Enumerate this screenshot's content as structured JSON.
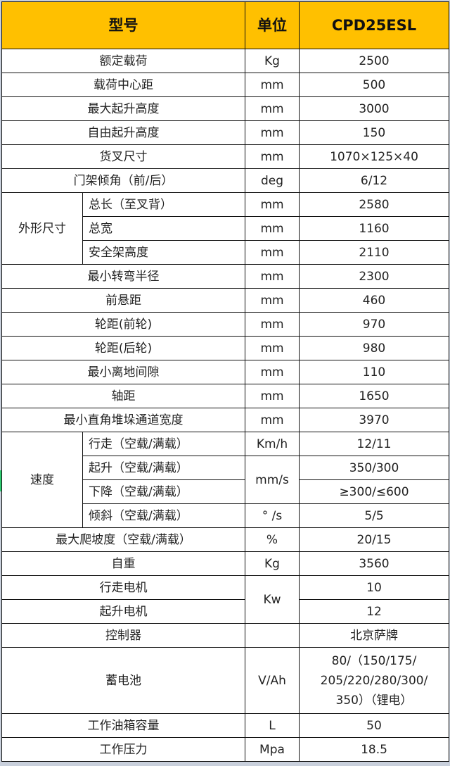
{
  "header": {
    "model": "型号",
    "unit": "单位",
    "value": "CPD25ESL"
  },
  "rows": [
    {
      "label": "额定载荷",
      "unit": "Kg",
      "value": "2500"
    },
    {
      "label": "载荷中心距",
      "unit": "mm",
      "value": "500"
    },
    {
      "label": "最大起升高度",
      "unit": "mm",
      "value": "3000"
    },
    {
      "label": "自由起升高度",
      "unit": "mm",
      "value": "150"
    },
    {
      "label": "货叉尺寸",
      "unit": "mm",
      "value": "1070×125×40"
    },
    {
      "label": "门架倾角（前/后）",
      "unit": "deg",
      "value": "6/12"
    }
  ],
  "dims": {
    "group": "外形尺寸",
    "items": [
      {
        "label": "总长（至叉背）",
        "unit": "mm",
        "value": "2580"
      },
      {
        "label": "总宽",
        "unit": "mm",
        "value": "1160"
      },
      {
        "label": "安全架高度",
        "unit": "mm",
        "value": "2110"
      }
    ]
  },
  "rows2": [
    {
      "label": "最小转弯半径",
      "unit": "mm",
      "value": "2300"
    },
    {
      "label": "前悬距",
      "unit": "mm",
      "value": "460"
    },
    {
      "label": "轮距(前轮)",
      "unit": "mm",
      "value": "970"
    },
    {
      "label": "轮距(后轮)",
      "unit": "mm",
      "value": "980"
    },
    {
      "label": "最小离地间隙",
      "unit": "mm",
      "value": "110"
    },
    {
      "label": "轴距",
      "unit": "mm",
      "value": "1650"
    },
    {
      "label": "最小直角堆垛通道宽度",
      "unit": "mm",
      "value": "3970"
    }
  ],
  "speed": {
    "group": "速度",
    "items": [
      {
        "label": "行走（空载/满载）",
        "unit": "Km/h",
        "value": "12/11"
      },
      {
        "label": "起升（空载/满载）",
        "unit": "mm/s",
        "value": "350/300"
      },
      {
        "label": "下降（空载/满载）",
        "value": "≥300/≤600"
      },
      {
        "label": "倾斜（空载/满载）",
        "unit": "° /s",
        "value": "5/5"
      }
    ]
  },
  "rows3": [
    {
      "label": "最大爬坡度（空载/满载）",
      "unit": "%",
      "value": "20/15"
    },
    {
      "label": "自重",
      "unit": "Kg",
      "value": "3560"
    },
    {
      "label": "行走电机",
      "unit": "Kw",
      "value": "10"
    },
    {
      "label": "起升电机",
      "value": "12"
    },
    {
      "label": "控制器",
      "unit": "",
      "value": "北京萨牌"
    },
    {
      "label": "蓄电池",
      "unit": "V/Ah",
      "value_lines": [
        "80/（150/175/",
        "205/220/280/300/",
        "350）（锂电）"
      ]
    },
    {
      "label": "工作油箱容量",
      "unit": "L",
      "value": "50"
    },
    {
      "label": "工作压力",
      "unit": "Mpa",
      "value": "18.5"
    }
  ],
  "colors": {
    "header_bg": "#ffc000",
    "border": "#111111"
  }
}
